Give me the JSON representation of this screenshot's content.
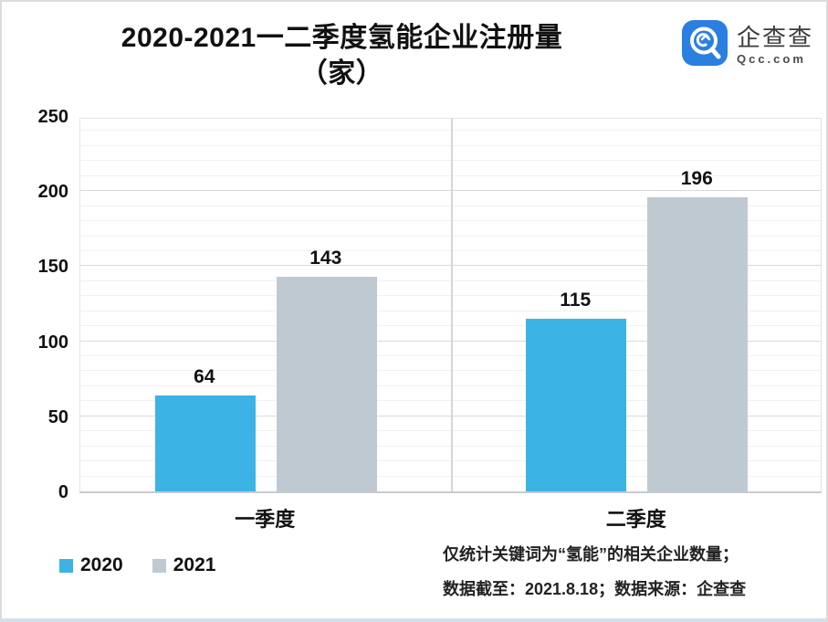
{
  "title": {
    "line1": "2020-2021一二季度氢能企业注册量",
    "line2": "（家）"
  },
  "logo": {
    "name": "企查查",
    "domain": "Qcc.com",
    "icon_color": "#2b7fe0"
  },
  "chart_data": {
    "type": "bar",
    "title": "2020-2021一二季度氢能企业注册量（家）",
    "categories": [
      "一季度",
      "二季度"
    ],
    "series": [
      {
        "name": "2020",
        "color": "#3bb4e5",
        "values": [
          64,
          115
        ]
      },
      {
        "name": "2021",
        "color": "#bfc9d1",
        "values": [
          143,
          196
        ]
      }
    ],
    "xlabel": "",
    "ylabel": "",
    "ylim": [
      0,
      250
    ],
    "y_ticks": [
      0,
      50,
      100,
      150,
      200,
      250
    ],
    "minor_grid_step": 10,
    "grid": true,
    "legend_position": "bottom-left"
  },
  "footer": {
    "line1": "仅统计关键词为“氢能”的相关企业数量；",
    "line2": "数据截至：2021.8.18；数据来源：企查查"
  }
}
